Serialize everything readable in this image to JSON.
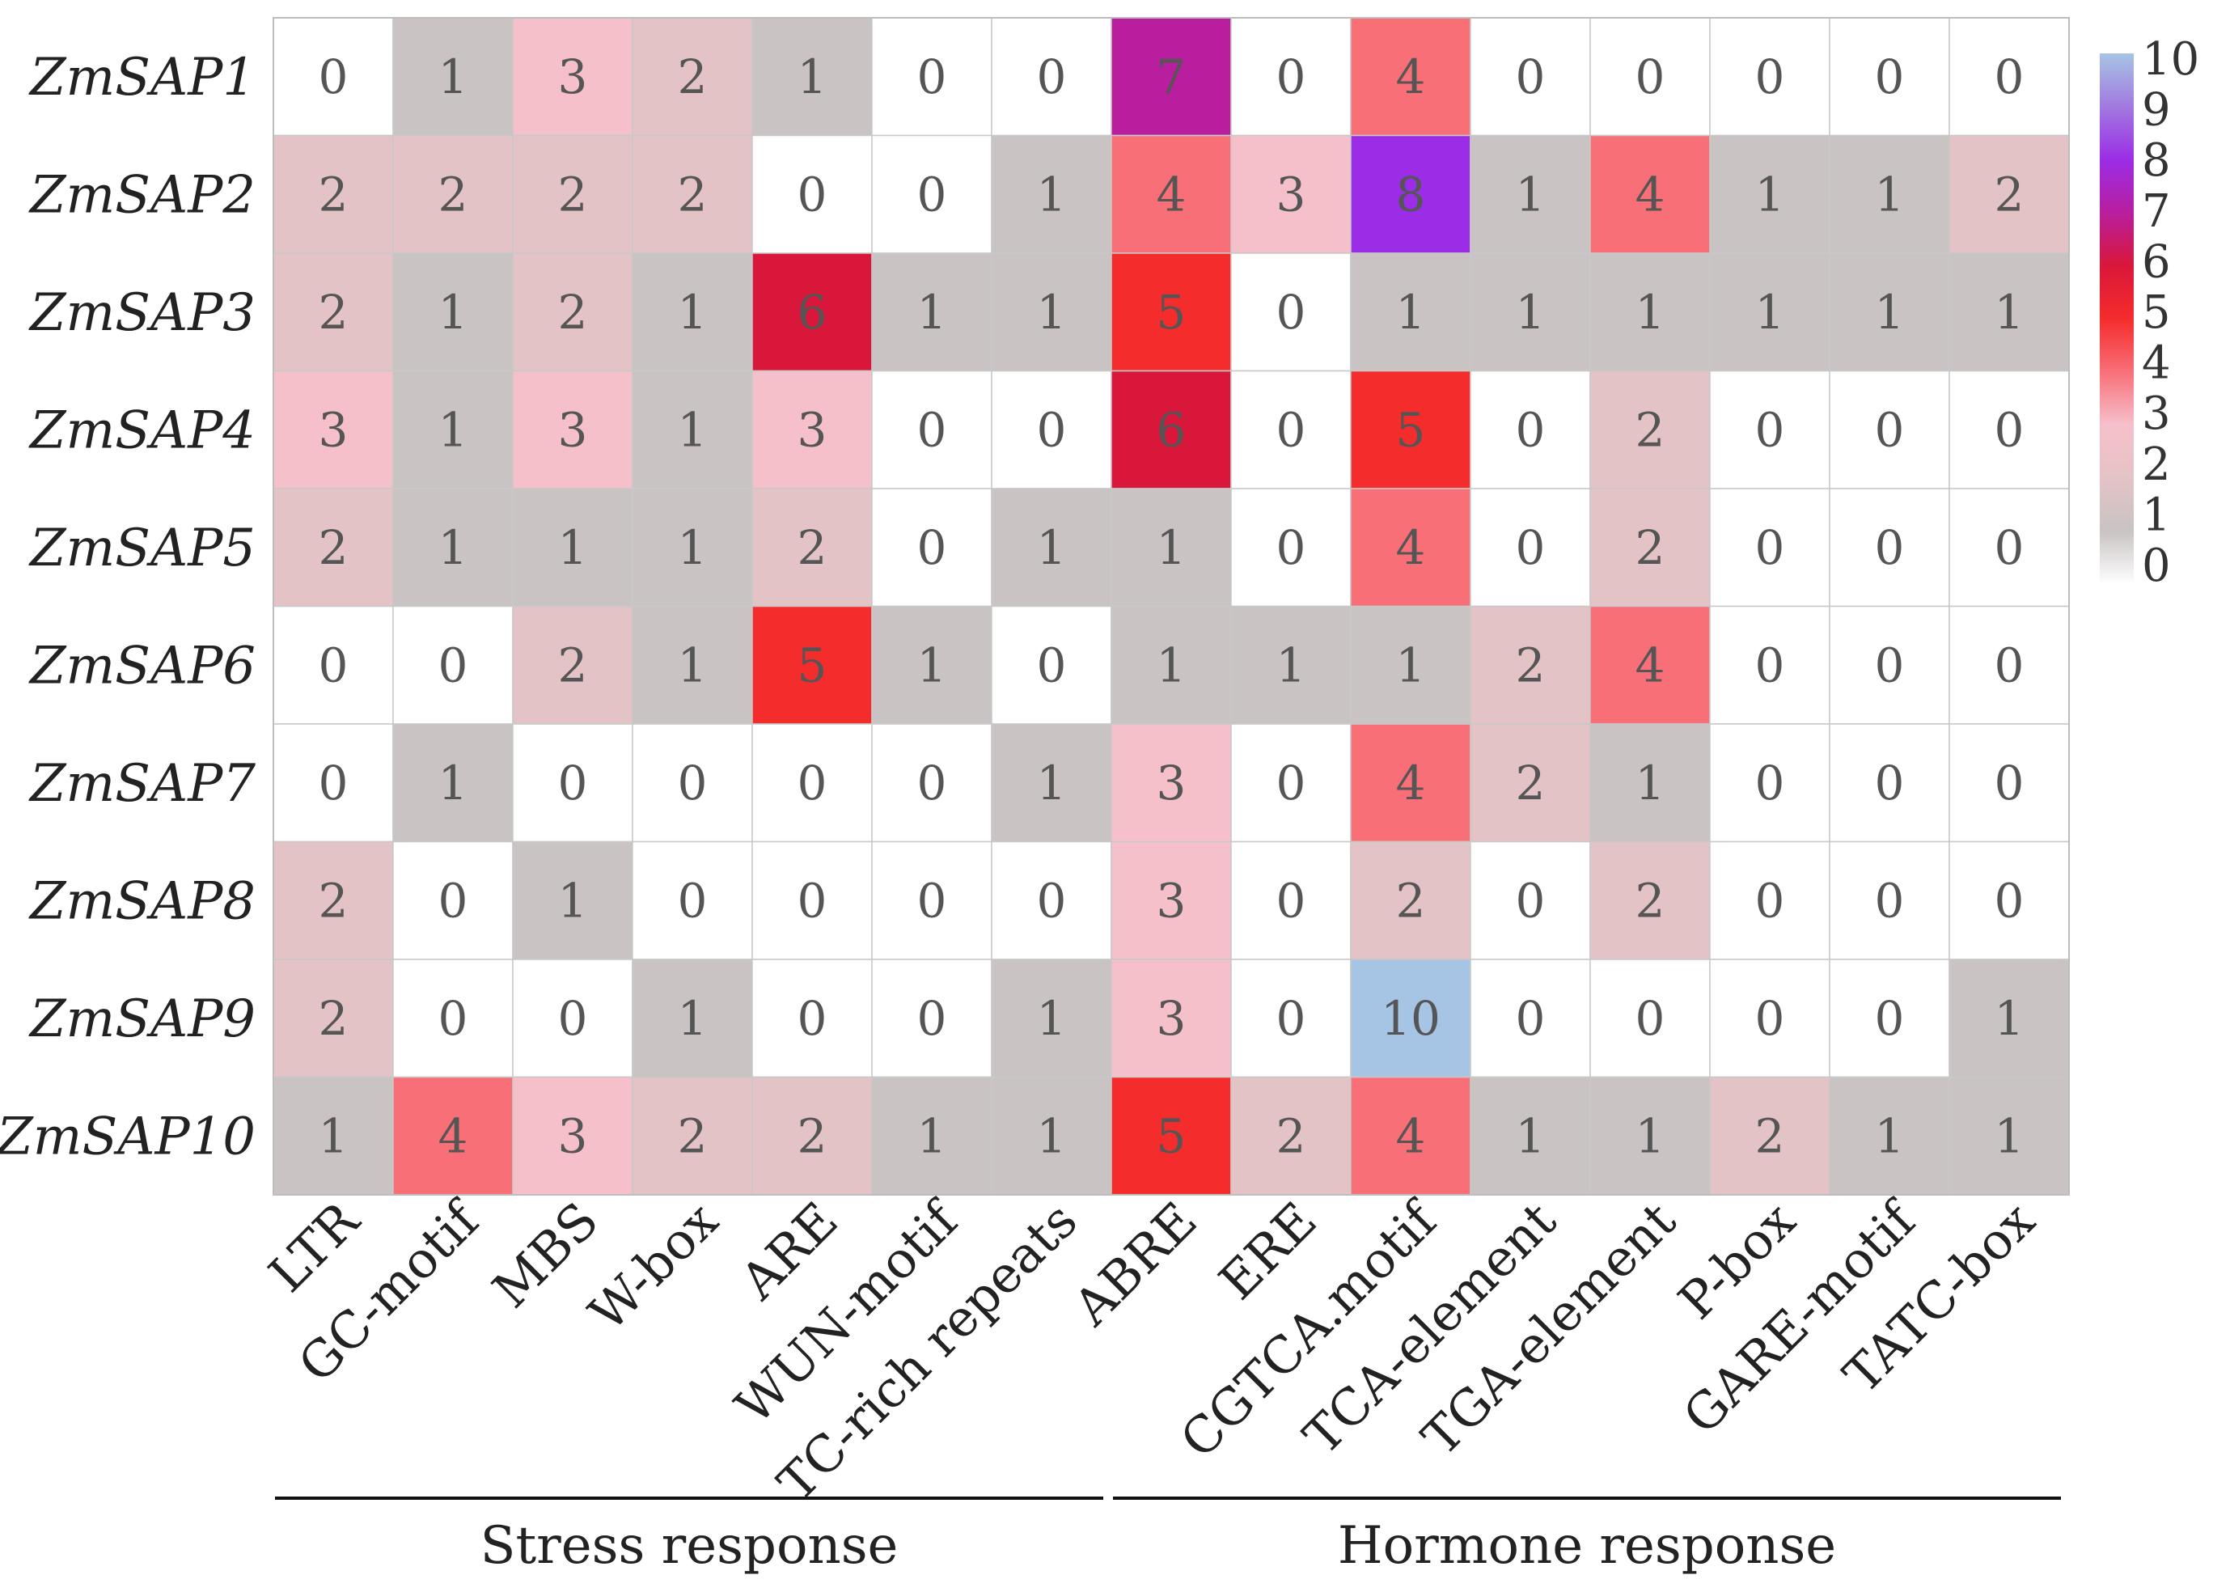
{
  "chart_data": {
    "type": "heatmap",
    "title": "",
    "rows": [
      "ZmSAP1",
      "ZmSAP2",
      "ZmSAP3",
      "ZmSAP4",
      "ZmSAP5",
      "ZmSAP6",
      "ZmSAP7",
      "ZmSAP8",
      "ZmSAP9",
      "ZmSAP10"
    ],
    "columns": [
      "LTR",
      "GC-motif",
      "MBS",
      "W-box",
      "ARE",
      "WUN-motif",
      "TC-rich repeats",
      "ABRE",
      "ERE",
      "CGTCA.motif",
      "TCA-element",
      "TGA-element",
      "P-box",
      "GARE-motif",
      "TATC-box"
    ],
    "values": [
      [
        0,
        1,
        3,
        2,
        1,
        0,
        0,
        7,
        0,
        4,
        0,
        0,
        0,
        0,
        0
      ],
      [
        2,
        2,
        2,
        2,
        0,
        0,
        1,
        4,
        3,
        8,
        1,
        4,
        1,
        1,
        2
      ],
      [
        2,
        1,
        2,
        1,
        6,
        1,
        1,
        5,
        0,
        1,
        1,
        1,
        1,
        1,
        1
      ],
      [
        3,
        1,
        3,
        1,
        3,
        0,
        0,
        6,
        0,
        5,
        0,
        2,
        0,
        0,
        0
      ],
      [
        2,
        1,
        1,
        1,
        2,
        0,
        1,
        1,
        0,
        4,
        0,
        2,
        0,
        0,
        0
      ],
      [
        0,
        0,
        2,
        1,
        5,
        1,
        0,
        1,
        1,
        1,
        2,
        4,
        0,
        0,
        0
      ],
      [
        0,
        1,
        0,
        0,
        0,
        0,
        1,
        3,
        0,
        4,
        2,
        1,
        0,
        0,
        0
      ],
      [
        2,
        0,
        1,
        0,
        0,
        0,
        0,
        3,
        0,
        2,
        0,
        2,
        0,
        0,
        0
      ],
      [
        2,
        0,
        0,
        1,
        0,
        0,
        1,
        3,
        0,
        10,
        0,
        0,
        0,
        0,
        1
      ],
      [
        1,
        4,
        3,
        2,
        2,
        1,
        1,
        5,
        2,
        4,
        1,
        1,
        2,
        1,
        1
      ]
    ],
    "colorbar": {
      "ticks": [
        "0",
        "1",
        "2",
        "3",
        "4",
        "5",
        "6",
        "7",
        "8",
        "9",
        "10"
      ],
      "range": [
        0,
        10
      ]
    },
    "colors": {
      "0": "#ffffff",
      "1": "#c9c3c3",
      "2": "#e4c3c6",
      "3": "#f6c0cb",
      "4": "#f86f78",
      "5": "#f52c2c",
      "6": "#d9173a",
      "7": "#b81e9e",
      "8": "#9b2de6",
      "9": "#a27ae0",
      "10": "#a6c4e4"
    },
    "groups": [
      {
        "label": "Stress response",
        "from": 0,
        "to": 6
      },
      {
        "label": "Hormone response",
        "from": 7,
        "to": 14
      }
    ]
  }
}
